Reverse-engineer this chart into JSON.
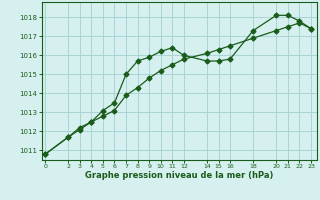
{
  "line1_x": [
    0,
    2,
    3,
    4,
    5,
    6,
    7,
    8,
    9,
    10,
    11,
    12,
    14,
    15,
    16,
    18,
    20,
    21,
    22,
    23
  ],
  "line1_y": [
    1010.8,
    1011.7,
    1012.1,
    1012.5,
    1013.1,
    1013.5,
    1015.0,
    1015.7,
    1015.9,
    1016.2,
    1016.4,
    1016.0,
    1015.7,
    1015.7,
    1015.8,
    1017.3,
    1018.1,
    1018.1,
    1017.8,
    1017.4
  ],
  "line2_x": [
    0,
    2,
    3,
    4,
    5,
    6,
    7,
    8,
    9,
    10,
    11,
    12,
    14,
    15,
    16,
    18,
    20,
    21,
    22,
    23
  ],
  "line2_y": [
    1010.8,
    1011.7,
    1012.2,
    1012.5,
    1012.8,
    1013.1,
    1013.9,
    1014.3,
    1014.8,
    1015.2,
    1015.5,
    1015.8,
    1016.1,
    1016.3,
    1016.5,
    1016.9,
    1017.3,
    1017.5,
    1017.7,
    1017.4
  ],
  "line_color": "#1a5c1a",
  "bg_color": "#d6f0f0",
  "grid_color": "#aad4d4",
  "tick_color": "#1a5c1a",
  "ylim": [
    1010.5,
    1018.8
  ],
  "yticks": [
    1011,
    1012,
    1013,
    1014,
    1015,
    1016,
    1017,
    1018
  ],
  "xticks": [
    0,
    2,
    3,
    4,
    5,
    6,
    7,
    8,
    9,
    10,
    11,
    12,
    14,
    15,
    16,
    18,
    20,
    21,
    22,
    23
  ],
  "xlim": [
    -0.3,
    23.5
  ],
  "xlabel": "Graphe pression niveau de la mer (hPa)",
  "marker": "D",
  "marker_size": 2.5
}
